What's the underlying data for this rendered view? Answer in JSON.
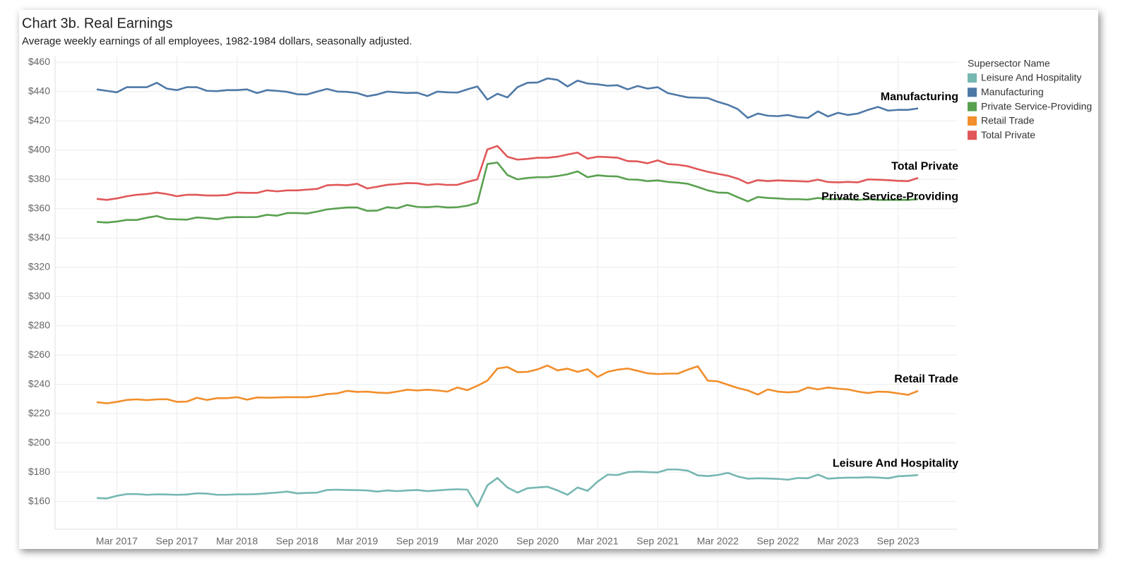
{
  "chart_data": {
    "type": "line",
    "title": "Chart 3b. Real Earnings",
    "subtitle": "Average weekly earnings of all employees, 1982-1984 dollars, seasonally adjusted.",
    "legend_title": "Supersector Name",
    "legend": "right",
    "grid": true,
    "categories": [
      null,
      null,
      "Mar 2017",
      null,
      null,
      null,
      null,
      null,
      "Sep 2017",
      null,
      null,
      null,
      null,
      null,
      "Mar 2018",
      null,
      null,
      null,
      null,
      null,
      "Sep 2018",
      null,
      null,
      null,
      null,
      null,
      "Mar 2019",
      null,
      null,
      null,
      null,
      null,
      "Sep 2019",
      null,
      null,
      null,
      null,
      null,
      "Mar 2020",
      null,
      null,
      null,
      null,
      null,
      "Sep 2020",
      null,
      null,
      null,
      null,
      null,
      "Mar 2021",
      null,
      null,
      null,
      null,
      null,
      "Sep 2021",
      null,
      null,
      null,
      null,
      null,
      "Mar 2022",
      null,
      null,
      null,
      null,
      null,
      "Sep 2022",
      null,
      null,
      null,
      null,
      null,
      "Mar 2023",
      null,
      null,
      null,
      null,
      null,
      "Sep 2023",
      null,
      null
    ],
    "ylim": [
      141,
      464
    ],
    "yticks": [
      {
        "value": 160,
        "label": "$160"
      },
      {
        "value": 180,
        "label": "$180"
      },
      {
        "value": 200,
        "label": "$200"
      },
      {
        "value": 220,
        "label": "$220"
      },
      {
        "value": 240,
        "label": "$240"
      },
      {
        "value": 260,
        "label": "$260"
      },
      {
        "value": 280,
        "label": "$280"
      },
      {
        "value": 300,
        "label": "$300"
      },
      {
        "value": 320,
        "label": "$320"
      },
      {
        "value": 340,
        "label": "$340"
      },
      {
        "value": 360,
        "label": "$360"
      },
      {
        "value": 380,
        "label": "$380"
      },
      {
        "value": 400,
        "label": "$400"
      },
      {
        "value": 420,
        "label": "$420"
      },
      {
        "value": 440,
        "label": "$440"
      },
      {
        "value": 460,
        "label": "$460"
      }
    ],
    "series": [
      {
        "name": "Leisure And Hospitality",
        "color": "#76b7b2",
        "values": [
          162.3,
          162,
          163.8,
          165,
          165,
          164.5,
          164.8,
          164.7,
          164.5,
          164.7,
          165.5,
          165.3,
          164.5,
          164.5,
          164.8,
          164.8,
          165,
          165.5,
          166,
          166.7,
          165.5,
          165.8,
          166,
          167.8,
          168,
          167.8,
          167.7,
          167.5,
          166.7,
          167.5,
          167,
          167.5,
          167.8,
          167,
          167.5,
          168,
          168.3,
          168,
          156.5,
          171,
          176,
          169.5,
          166,
          169,
          169.5,
          170,
          167.5,
          164.5,
          169.5,
          167.2,
          173.5,
          178.3,
          178,
          180,
          180.3,
          180,
          179.8,
          181.8,
          181.8,
          181,
          177.8,
          177.3,
          178,
          179.5,
          177,
          175.5,
          175.8,
          175.6,
          175.4,
          174.8,
          176,
          175.8,
          178.3,
          175.5,
          176,
          176.2,
          176.2,
          176.5,
          176.3,
          175.8,
          177.2,
          177.5,
          178
        ]
      },
      {
        "name": "Manufacturing",
        "color": "#4e79a7",
        "values": [
          441.5,
          440.5,
          439.5,
          443,
          443,
          443,
          446,
          442,
          441,
          443,
          443,
          440.5,
          440.3,
          441,
          441,
          441.5,
          439,
          441,
          440.5,
          439.8,
          438.2,
          438,
          440,
          441.8,
          440,
          439.8,
          439,
          436.8,
          438,
          440,
          439.5,
          439,
          439.2,
          437,
          440,
          439.5,
          439.3,
          441.5,
          443.5,
          434.5,
          438.5,
          436,
          443,
          446,
          446.2,
          449,
          448,
          443.5,
          447.5,
          445.5,
          445,
          444,
          444.3,
          441.5,
          443.8,
          442,
          443,
          439,
          437.5,
          436,
          435.8,
          435.6,
          433,
          431,
          428,
          422,
          425,
          423.5,
          423.2,
          424,
          422.5,
          422,
          426.5,
          423,
          425.5,
          424,
          425,
          427.5,
          429.5,
          427,
          427.5,
          427.5,
          428.5
        ]
      },
      {
        "name": "Private Service-Providing",
        "color": "#59a14f",
        "values": [
          351,
          350.5,
          351.2,
          352.3,
          352.3,
          353.8,
          355,
          353,
          352.7,
          352.5,
          354,
          353.5,
          352.8,
          354,
          354.3,
          354.2,
          354.3,
          355.8,
          355.2,
          357,
          357,
          356.7,
          358,
          359.5,
          360.2,
          360.8,
          360.8,
          358.5,
          358.7,
          361,
          360.3,
          362.5,
          361.2,
          361,
          361.5,
          360.8,
          361,
          362,
          364,
          390.5,
          391.5,
          383,
          380,
          381,
          381.5,
          381.5,
          382.3,
          383.5,
          385.5,
          381.5,
          382.8,
          382.2,
          382,
          380,
          379.8,
          378.8,
          379.3,
          378.3,
          377.8,
          377,
          374.8,
          372.5,
          371,
          370.8,
          367.8,
          365,
          368,
          367.3,
          367,
          366.5,
          366.5,
          366.2,
          367.3,
          366.5,
          366.5,
          366.5,
          366,
          366.5,
          366,
          366,
          366,
          366,
          366.5
        ]
      },
      {
        "name": "Retail Trade",
        "color": "#f28e2b",
        "values": [
          227.8,
          227,
          228,
          229.3,
          229.7,
          229.2,
          229.7,
          229.8,
          228,
          228.2,
          230.8,
          229.3,
          230.5,
          230.5,
          231.2,
          229.5,
          231,
          230.8,
          231,
          231.2,
          231.2,
          231.2,
          232,
          233.3,
          233.8,
          235.5,
          234.8,
          235,
          234.3,
          234,
          235,
          236.3,
          235.8,
          236.3,
          235.8,
          235,
          237.8,
          236,
          239,
          242.5,
          250.8,
          251.8,
          248.3,
          248.5,
          250.2,
          252.8,
          249.5,
          250.7,
          248.5,
          250.3,
          245,
          248.5,
          250,
          250.8,
          249.2,
          247.5,
          247,
          247.3,
          247.3,
          250,
          252.3,
          242.5,
          242,
          239.7,
          237.5,
          235.8,
          233,
          236.5,
          235,
          234.5,
          235,
          237.8,
          236.5,
          237.8,
          237,
          236.5,
          235,
          234,
          235,
          234.8,
          233.8,
          232.8,
          235.5
        ]
      },
      {
        "name": "Total Private",
        "color": "#e15759",
        "values": [
          366.7,
          366,
          367,
          368.5,
          369.5,
          370,
          371,
          370,
          368.5,
          369.5,
          369.5,
          369,
          369,
          369.3,
          371,
          370.8,
          370.8,
          372.5,
          371.8,
          372.5,
          372.5,
          373,
          373.5,
          376,
          376.3,
          376,
          377,
          373.8,
          375,
          376.3,
          376.8,
          377.5,
          377.3,
          376.2,
          376.8,
          376.2,
          376.3,
          378.3,
          380,
          400.5,
          402.8,
          395.5,
          393.5,
          394,
          394.8,
          394.8,
          395.5,
          397,
          398.3,
          394.2,
          395.5,
          395.2,
          394.8,
          392.5,
          392.3,
          391,
          393,
          390.5,
          390,
          389,
          387,
          385.2,
          383.8,
          382.5,
          380.5,
          377.3,
          379.5,
          378.8,
          379.3,
          379,
          378.8,
          378.5,
          379.8,
          378.2,
          378,
          378.3,
          378,
          380,
          379.8,
          379.5,
          379,
          378.8,
          381
        ]
      }
    ]
  }
}
